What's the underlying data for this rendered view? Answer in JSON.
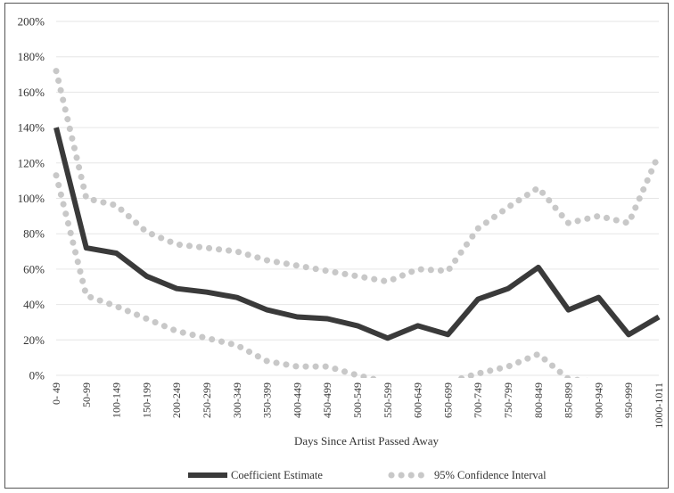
{
  "chart_data": {
    "type": "line",
    "xlabel": "Days Since Artist Passed Away",
    "ylabel": "",
    "y_unit": "%",
    "ylim": [
      0,
      200
    ],
    "yticks": [
      0,
      20,
      40,
      60,
      80,
      100,
      120,
      140,
      160,
      180,
      200
    ],
    "ytick_labels": [
      "0%",
      "20%",
      "40%",
      "60%",
      "80%",
      "100%",
      "120%",
      "140%",
      "160%",
      "180%",
      "200%"
    ],
    "grid": true,
    "legend_position": "bottom",
    "categories": [
      "0- 49",
      "50-99",
      "100-149",
      "150-199",
      "200-249",
      "250-299",
      "300-349",
      "350-399",
      "400-449",
      "450-499",
      "500-549",
      "550-599",
      "600-649",
      "650-699",
      "700-749",
      "750-799",
      "800-849",
      "850-899",
      "900-949",
      "950-999",
      "1000-1011"
    ],
    "series": [
      {
        "name": "Coefficient Estimate",
        "style": "solid",
        "color": "#3a3a3a",
        "values": [
          140,
          72,
          69,
          56,
          49,
          47,
          44,
          37,
          33,
          32,
          28,
          21,
          28,
          23,
          43,
          49,
          61,
          37,
          44,
          23,
          33
        ]
      },
      {
        "name": "95% Confidence Interval",
        "style": "dotted",
        "color": "#c8c8c8",
        "legend": true,
        "values": [
          172,
          100,
          96,
          81,
          74,
          72,
          70,
          65,
          62,
          59,
          56,
          53,
          60,
          59,
          83,
          95,
          106,
          86,
          90,
          86,
          125
        ]
      },
      {
        "name": "95% Confidence Interval",
        "style": "dotted",
        "color": "#c8c8c8",
        "legend": false,
        "values": [
          113,
          45,
          39,
          32,
          25,
          21,
          17,
          8,
          5,
          5,
          0,
          -4,
          -4,
          -4,
          1,
          5,
          12,
          -2,
          -4,
          -4,
          -4
        ]
      }
    ]
  }
}
